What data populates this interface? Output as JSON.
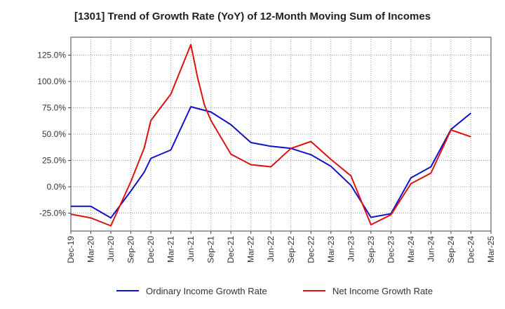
{
  "chart_data": {
    "type": "line",
    "title": "[1301]  Trend of Growth Rate (YoY) of 12-Month Moving Sum of Incomes",
    "xlabel": "",
    "ylabel": "",
    "categories": [
      "Dec-19",
      "Mar-20",
      "Jun-20",
      "Sep-20",
      "Dec-20",
      "Mar-21",
      "Jun-21",
      "Sep-21",
      "Dec-21",
      "Mar-22",
      "Jun-22",
      "Sep-22",
      "Dec-22",
      "Mar-23",
      "Jun-23",
      "Sep-23",
      "Dec-23",
      "Mar-24",
      "Jun-24",
      "Sep-24",
      "Dec-24",
      "Mar-25"
    ],
    "ylim": [
      -42,
      142
    ],
    "yticks": [
      -25,
      0,
      25,
      50,
      75,
      100,
      125
    ],
    "ytick_labels": [
      "-25.0%",
      "0.0%",
      "25.0%",
      "50.0%",
      "75.0%",
      "100.0%",
      "125.0%"
    ],
    "grid": true,
    "legend_position": "bottom",
    "series": [
      {
        "name": "Ordinary Income Growth Rate",
        "color": "#1010cc",
        "points": [
          [
            0,
            -18.5
          ],
          [
            1,
            -18.5
          ],
          [
            2,
            -29.5
          ],
          [
            3,
            -4
          ],
          [
            3.67,
            14
          ],
          [
            4,
            27
          ],
          [
            5,
            35
          ],
          [
            6,
            76
          ],
          [
            7,
            71
          ],
          [
            8,
            59
          ],
          [
            9,
            42
          ],
          [
            10,
            38.5
          ],
          [
            11,
            36.5
          ],
          [
            12,
            30.5
          ],
          [
            13,
            19.5
          ],
          [
            14,
            1.5
          ],
          [
            15,
            -29
          ],
          [
            16,
            -25.5
          ],
          [
            17,
            8.5
          ],
          [
            18,
            19
          ],
          [
            19,
            54.5
          ],
          [
            20,
            70
          ]
        ]
      },
      {
        "name": "Net Income Growth Rate",
        "color": "#dd1111",
        "points": [
          [
            0,
            -26
          ],
          [
            1,
            -29.5
          ],
          [
            2,
            -37
          ],
          [
            3,
            5
          ],
          [
            3.67,
            37
          ],
          [
            4,
            63
          ],
          [
            5,
            88
          ],
          [
            6,
            135
          ],
          [
            6.33,
            104
          ],
          [
            6.67,
            78
          ],
          [
            7,
            63
          ],
          [
            8,
            31
          ],
          [
            9,
            21
          ],
          [
            10,
            19
          ],
          [
            11,
            36.5
          ],
          [
            12,
            43
          ],
          [
            13,
            26
          ],
          [
            14,
            10.5
          ],
          [
            15,
            -36
          ],
          [
            16,
            -26.5
          ],
          [
            17,
            3
          ],
          [
            18,
            13
          ],
          [
            19,
            54
          ],
          [
            20,
            47.5
          ]
        ]
      }
    ]
  }
}
